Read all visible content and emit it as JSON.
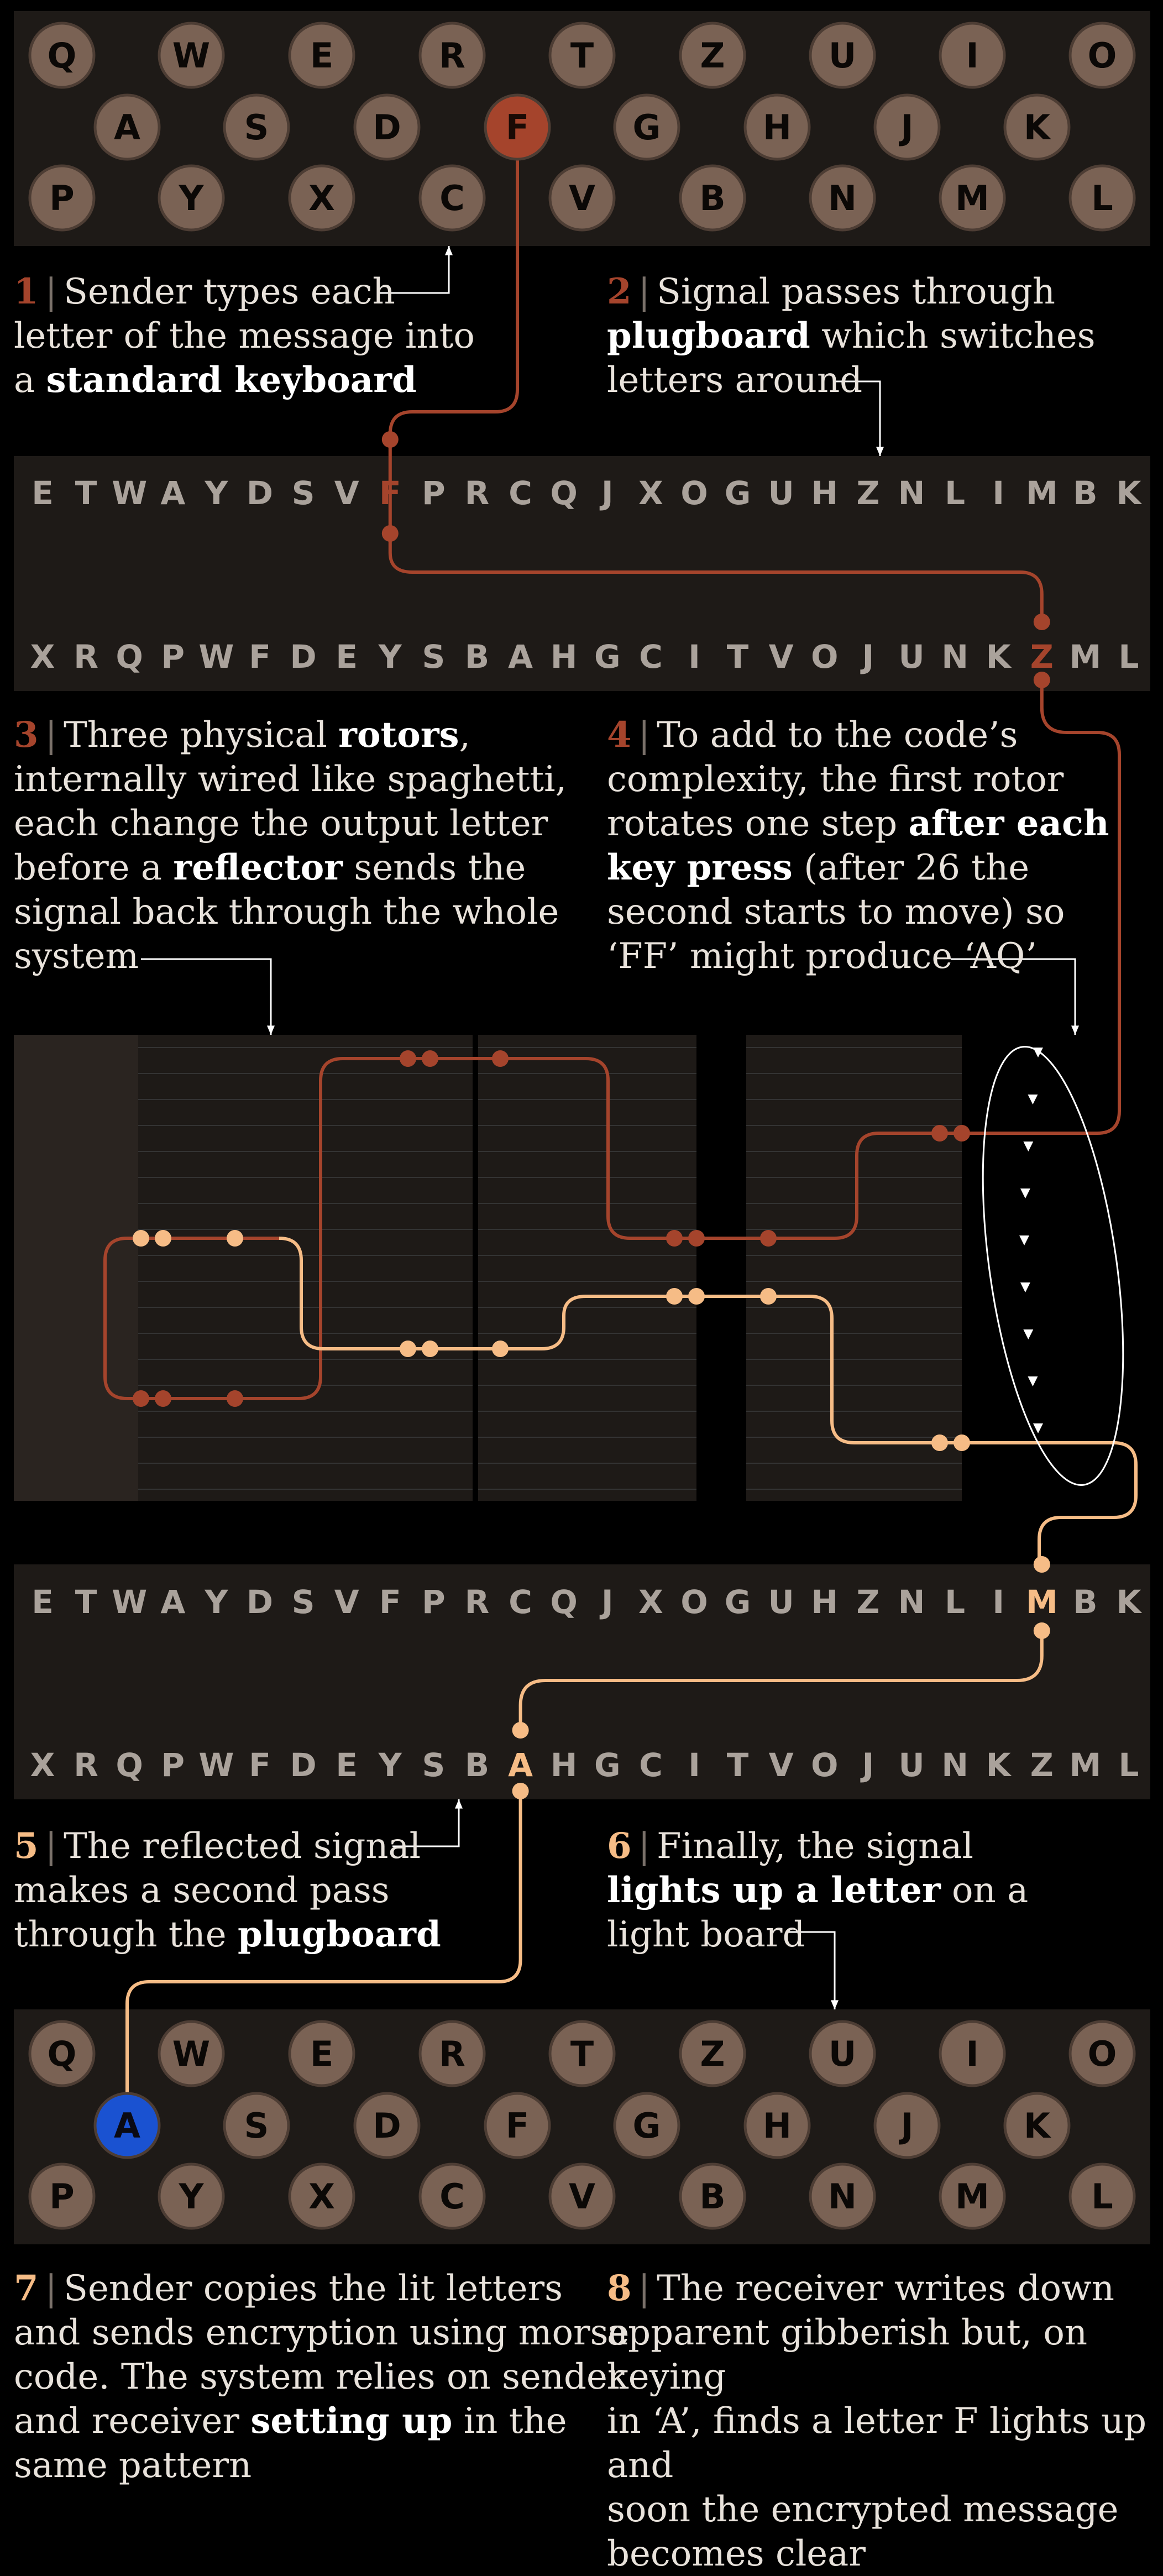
{
  "colors": {
    "background": "#000000",
    "panel": "#1e1a17",
    "key_fill": "#7a6254",
    "key_stroke": "#4d3d34",
    "key_letter": "#0b0806",
    "plug_letter": "#aaa29b",
    "forward": "#a5442c",
    "return": "#f6bc86",
    "lit_lamp": "#1a52d1",
    "annot": "#ffffff"
  },
  "keyboard_rows": [
    [
      "Q",
      "W",
      "E",
      "R",
      "T",
      "Z",
      "U",
      "I",
      "O"
    ],
    [
      "A",
      "S",
      "D",
      "F",
      "G",
      "H",
      "J",
      "K"
    ],
    [
      "P",
      "Y",
      "X",
      "C",
      "V",
      "B",
      "N",
      "M",
      "L"
    ]
  ],
  "plugboard_top": [
    "E",
    "T",
    "W",
    "A",
    "Y",
    "D",
    "S",
    "V",
    "F",
    "P",
    "R",
    "C",
    "Q",
    "J",
    "X",
    "O",
    "G",
    "U",
    "H",
    "Z",
    "N",
    "L",
    "I",
    "M",
    "B",
    "K"
  ],
  "plugboard_bottom": [
    "X",
    "R",
    "Q",
    "P",
    "W",
    "F",
    "D",
    "E",
    "Y",
    "S",
    "B",
    "A",
    "H",
    "G",
    "C",
    "I",
    "T",
    "V",
    "O",
    "J",
    "U",
    "N",
    "K",
    "Z",
    "M",
    "L"
  ],
  "pressed_key": "F",
  "lit_key": "A",
  "steps": [
    {
      "num": "1",
      "color": "#a5442c",
      "parts": [
        [
          "Sender types each",
          ""
        ],
        [
          "letter of the message into",
          ""
        ],
        [
          "a ",
          "standard keyboard"
        ]
      ]
    },
    {
      "num": "2",
      "color": "#a5442c",
      "parts": [
        [
          "Signal passes through",
          ""
        ],
        [
          "",
          "plugboard",
          " which switches"
        ],
        [
          "letters around",
          ""
        ]
      ]
    },
    {
      "num": "3",
      "color": "#a5442c",
      "parts": [
        [
          "Three physical ",
          "rotors",
          ","
        ],
        [
          "internally wired like spaghetti,",
          ""
        ],
        [
          "each change the output letter",
          ""
        ],
        [
          "before a ",
          "reflector",
          " sends the"
        ],
        [
          "signal back through the whole",
          ""
        ],
        [
          "system",
          ""
        ]
      ]
    },
    {
      "num": "4",
      "color": "#a5442c",
      "parts": [
        [
          "To add to the code’s",
          ""
        ],
        [
          "complexity, the first rotor",
          ""
        ],
        [
          "rotates one step ",
          "after each"
        ],
        [
          "",
          "key press",
          " (after 26 the"
        ],
        [
          "second starts to move) so",
          ""
        ],
        [
          "‘FF’ might produce ‘AQ’",
          ""
        ]
      ]
    },
    {
      "num": "5",
      "color": "#f6bc86",
      "parts": [
        [
          "The reflected signal",
          ""
        ],
        [
          "makes a second pass",
          ""
        ],
        [
          "through the ",
          "plugboard"
        ]
      ]
    },
    {
      "num": "6",
      "color": "#f6bc86",
      "parts": [
        [
          "Finally, the signal",
          ""
        ],
        [
          "",
          "lights up a letter",
          " on a"
        ],
        [
          "light board",
          ""
        ]
      ]
    },
    {
      "num": "7",
      "color": "#f6bc86",
      "parts": [
        [
          "Sender copies the lit letters",
          ""
        ],
        [
          "and sends encryption using morse",
          ""
        ],
        [
          "code. The system relies on sender",
          ""
        ],
        [
          "and receiver ",
          "setting up",
          " in the"
        ],
        [
          "same pattern",
          ""
        ]
      ]
    },
    {
      "num": "8",
      "color": "#f6bc86",
      "parts": [
        [
          "The receiver writes down",
          ""
        ],
        [
          "apparent gibberish but, on keying",
          ""
        ],
        [
          "in ‘A’, finds a letter F lights up and",
          ""
        ],
        [
          "soon the encrypted message",
          ""
        ],
        [
          "becomes clear",
          ""
        ]
      ]
    }
  ]
}
